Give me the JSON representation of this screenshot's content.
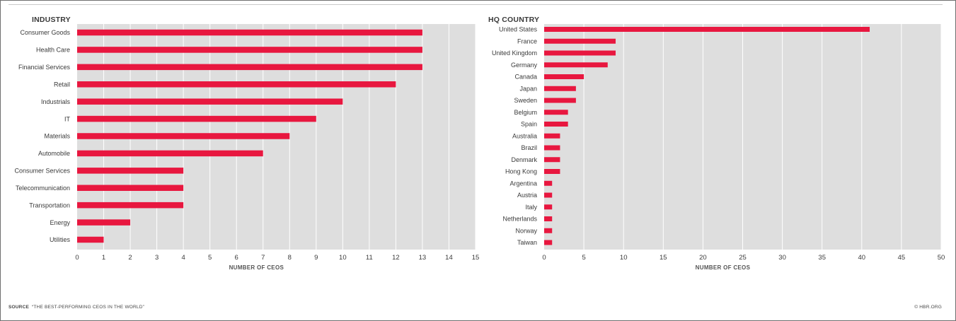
{
  "colors": {
    "bar": "#e8173f",
    "plot_background": "#dedede",
    "grid": "#ffffff"
  },
  "footer": {
    "source_label": "SOURCE",
    "source_text": "“THE BEST-PERFORMING CEOS IN THE WORLD”",
    "credit": "© HBR.ORG"
  },
  "chart_data": [
    {
      "type": "bar",
      "orientation": "horizontal",
      "title": "INDUSTRY",
      "xlabel": "NUMBER OF CEOS",
      "ylabel": "",
      "xlim": [
        0,
        15
      ],
      "ticks": [
        0,
        1,
        2,
        3,
        4,
        5,
        6,
        7,
        8,
        9,
        10,
        11,
        12,
        13,
        14,
        15
      ],
      "grid": true,
      "categories": [
        "Consumer Goods",
        "Health Care",
        "Financial Services",
        "Retail",
        "Industrials",
        "IT",
        "Materials",
        "Automobile",
        "Consumer Services",
        "Telecommunication",
        "Transportation",
        "Energy",
        "Utilities"
      ],
      "values": [
        13,
        13,
        13,
        12,
        10,
        9,
        8,
        7,
        4,
        4,
        4,
        2,
        1
      ]
    },
    {
      "type": "bar",
      "orientation": "horizontal",
      "title": "HQ COUNTRY",
      "xlabel": "NUMBER OF CEOS",
      "ylabel": "",
      "xlim": [
        0,
        50
      ],
      "ticks": [
        0,
        5,
        10,
        15,
        20,
        25,
        30,
        35,
        40,
        45,
        50
      ],
      "grid": true,
      "categories": [
        "United States",
        "France",
        "United Kingdom",
        "Germany",
        "Canada",
        "Japan",
        "Sweden",
        "Belgium",
        "Spain",
        "Australia",
        "Brazil",
        "Denmark",
        "Hong Kong",
        "Argentina",
        "Austria",
        "Italy",
        "Netherlands",
        "Norway",
        "Taiwan"
      ],
      "values": [
        41,
        9,
        9,
        8,
        5,
        4,
        4,
        3,
        3,
        2,
        2,
        2,
        2,
        1,
        1,
        1,
        1,
        1,
        1
      ]
    }
  ]
}
